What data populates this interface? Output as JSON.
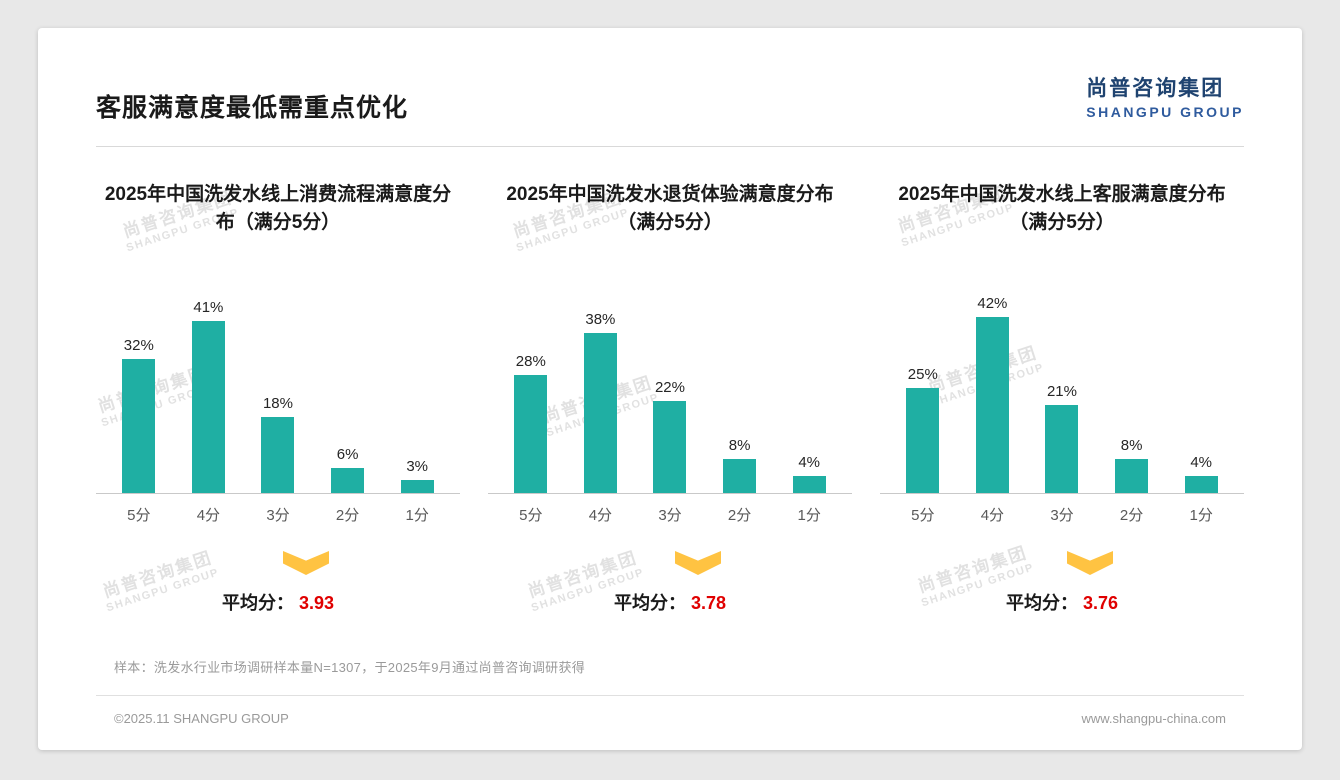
{
  "header": {
    "title": "客服满意度最低需重点优化",
    "logo_cn": "尚普咨询集团",
    "logo_en": "SHANGPU GROUP"
  },
  "labels": {
    "average_label": "平均分："
  },
  "chart_data": [
    {
      "type": "bar",
      "title": "2025年中国洗发水线上消费流程满意度分布（满分5分）",
      "categories": [
        "5分",
        "4分",
        "3分",
        "2分",
        "1分"
      ],
      "values": [
        32,
        41,
        18,
        6,
        3
      ],
      "unit": "%",
      "average": "3.93",
      "ylim": [
        0,
        45
      ],
      "grid": false,
      "legend": false
    },
    {
      "type": "bar",
      "title": "2025年中国洗发水退货体验满意度分布（满分5分）",
      "categories": [
        "5分",
        "4分",
        "3分",
        "2分",
        "1分"
      ],
      "values": [
        28,
        38,
        22,
        8,
        4
      ],
      "unit": "%",
      "average": "3.78",
      "ylim": [
        0,
        45
      ],
      "grid": false,
      "legend": false
    },
    {
      "type": "bar",
      "title": "2025年中国洗发水线上客服满意度分布（满分5分）",
      "categories": [
        "5分",
        "4分",
        "3分",
        "2分",
        "1分"
      ],
      "values": [
        25,
        42,
        21,
        8,
        4
      ],
      "unit": "%",
      "average": "3.76",
      "ylim": [
        0,
        45
      ],
      "grid": false,
      "legend": false
    }
  ],
  "watermark": {
    "cn": "尚普咨询集团",
    "en": "SHANGPU GROUP"
  },
  "footnote": "样本：洗发水行业市场调研样本量N=1307，于2025年9月通过尚普咨询调研获得",
  "footer": {
    "left": "©2025.11 SHANGPU GROUP",
    "right": "www.shangpu-china.com"
  },
  "colors": {
    "bar": "#1FAFA3",
    "average_value": "#E00000",
    "arrow": "#FFC342",
    "logo_cn": "#1F4370",
    "logo_en": "#2F5B9E"
  }
}
